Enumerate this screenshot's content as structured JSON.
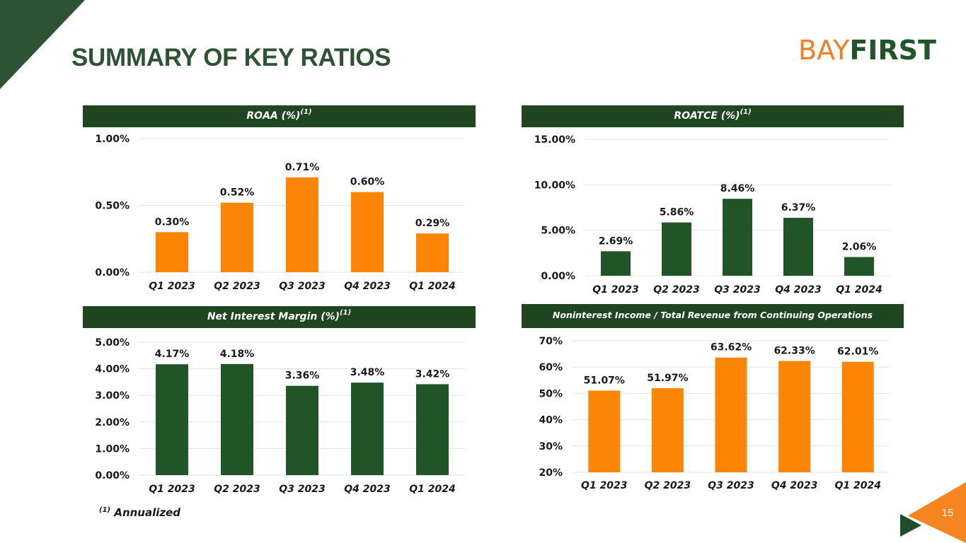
{
  "page": {
    "title": "SUMMARY OF KEY RATIOS",
    "page_number": "15",
    "footnote_marker": "(1)",
    "footnote_text": "Annualized"
  },
  "logo": {
    "part1": "BAY",
    "part2": "FIRST"
  },
  "colors": {
    "green_dark": "#1f4521",
    "green_bar": "#215528",
    "orange": "#fd8505",
    "title_green": "#2d5234"
  },
  "chart_data": [
    {
      "id": "roaa",
      "type": "bar",
      "title": "ROAA (%)",
      "title_sup": "(1)",
      "categories": [
        "Q1 2023",
        "Q2 2023",
        "Q3 2023",
        "Q4 2023",
        "Q1 2024"
      ],
      "values": [
        0.3,
        0.52,
        0.71,
        0.6,
        0.29
      ],
      "value_labels": [
        "0.30%",
        "0.52%",
        "0.71%",
        "0.60%",
        "0.29%"
      ],
      "ylim": [
        0,
        1.0
      ],
      "yticks": [
        0,
        0.5,
        1.0
      ],
      "ytick_labels": [
        "0.00%",
        "0.50%",
        "1.00%"
      ],
      "color": "#fd8505",
      "grid": true
    },
    {
      "id": "roatce",
      "type": "bar",
      "title": "ROATCE (%)",
      "title_sup": "(1)",
      "categories": [
        "Q1 2023",
        "Q2 2023",
        "Q3 2023",
        "Q4 2023",
        "Q1 2024"
      ],
      "values": [
        2.69,
        5.86,
        8.46,
        6.37,
        2.06
      ],
      "value_labels": [
        "2.69%",
        "5.86%",
        "8.46%",
        "6.37%",
        "2.06%"
      ],
      "ylim": [
        0,
        15
      ],
      "yticks": [
        0,
        5,
        10,
        15
      ],
      "ytick_labels": [
        "0.00%",
        "5.00%",
        "10.00%",
        "15.00%"
      ],
      "color": "#215528",
      "grid": true
    },
    {
      "id": "nim",
      "type": "bar",
      "title": "Net Interest Margin (%)",
      "title_sup": "(1)",
      "categories": [
        "Q1 2023",
        "Q2 2023",
        "Q3 2023",
        "Q4 2023",
        "Q1 2024"
      ],
      "values": [
        4.17,
        4.18,
        3.36,
        3.48,
        3.42
      ],
      "value_labels": [
        "4.17%",
        "4.18%",
        "3.36%",
        "3.48%",
        "3.42%"
      ],
      "ylim": [
        0,
        5
      ],
      "yticks": [
        0,
        1,
        2,
        3,
        4,
        5
      ],
      "ytick_labels": [
        "0.00%",
        "1.00%",
        "2.00%",
        "3.00%",
        "4.00%",
        "5.00%"
      ],
      "color": "#215528",
      "grid": true
    },
    {
      "id": "nonint",
      "type": "bar",
      "title": "Noninterest Income / Total Revenue from Continuing Operations",
      "title_sup": "",
      "categories": [
        "Q1 2023",
        "Q2 2023",
        "Q3 2023",
        "Q4 2023",
        "Q1 2024"
      ],
      "values": [
        51.07,
        51.97,
        63.62,
        62.33,
        62.01
      ],
      "value_labels": [
        "51.07%",
        "51.97%",
        "63.62%",
        "62.33%",
        "62.01%"
      ],
      "ylim": [
        20,
        70
      ],
      "yticks": [
        20,
        30,
        40,
        50,
        60,
        70
      ],
      "ytick_labels": [
        "20%",
        "30%",
        "40%",
        "50%",
        "60%",
        "70%"
      ],
      "color": "#fd8505",
      "grid": true
    }
  ]
}
